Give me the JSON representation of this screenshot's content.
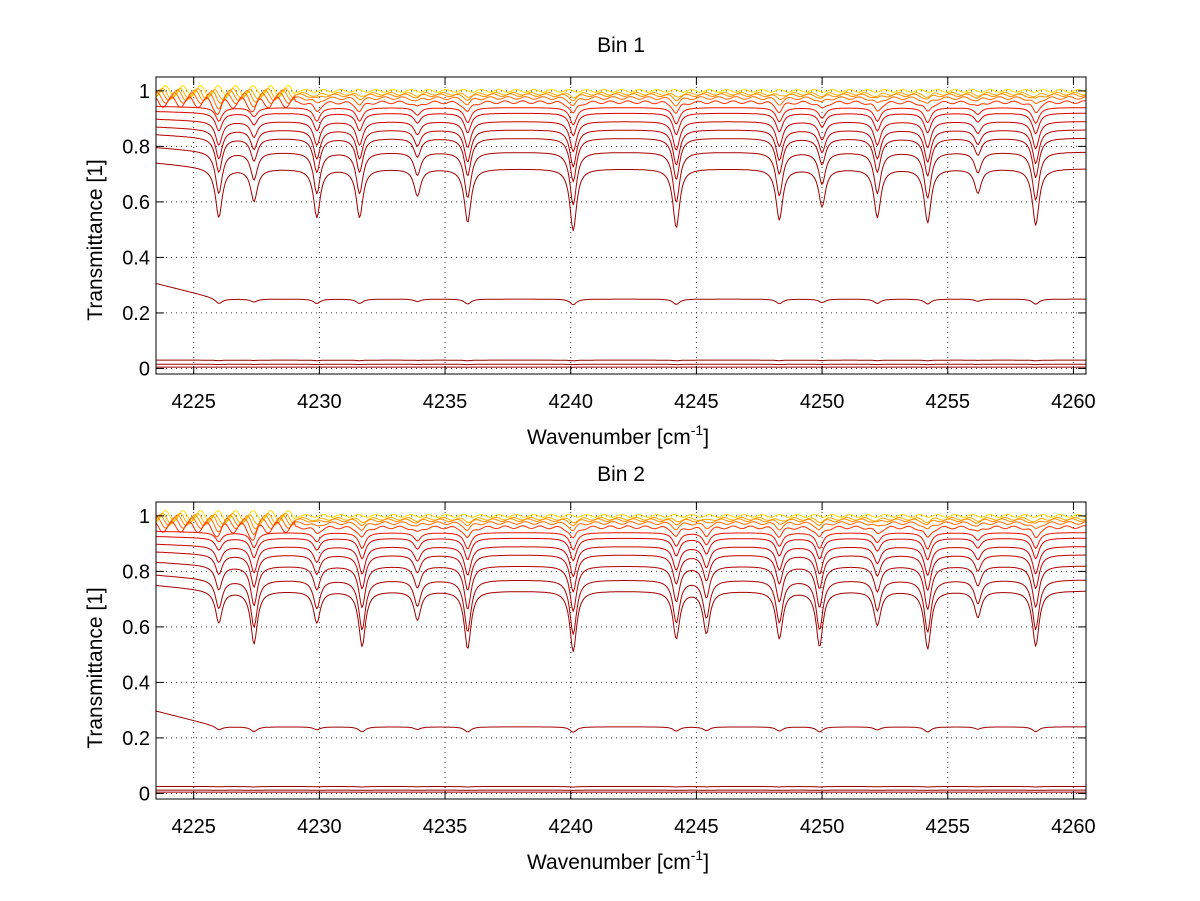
{
  "chart_data": [
    {
      "type": "line",
      "title": "Bin 1",
      "xlabel": "Wavenumber [cm-1]",
      "xlabel_main": "Wavenumber [cm",
      "xlabel_sup": "-1",
      "xlabel_end": "]",
      "ylabel": "Transmittance [1]",
      "xlim": [
        4223.5,
        4260.5
      ],
      "ylim": [
        -0.02,
        1.05
      ],
      "xticks": [
        4225,
        4230,
        4235,
        4240,
        4245,
        4250,
        4255,
        4260
      ],
      "yticks": [
        0,
        0.2,
        0.4,
        0.6,
        0.8,
        1
      ],
      "ytick_labels": [
        "0",
        "0.2",
        "0.4",
        "0.6",
        "0.8",
        "1"
      ],
      "grid": true,
      "absorption_lines_x": [
        4226.0,
        4227.4,
        4229.9,
        4231.6,
        4233.9,
        4235.9,
        4240.1,
        4244.2,
        4248.3,
        4250.0,
        4252.2,
        4254.2,
        4256.2,
        4258.5
      ],
      "absorption_line_strengths": [
        0.9,
        0.6,
        0.9,
        0.9,
        0.5,
        1.0,
        1.15,
        1.1,
        0.95,
        0.7,
        0.9,
        1.0,
        0.45,
        1.05
      ],
      "series_baselines": [
        1.0,
        0.99,
        0.985,
        0.975,
        0.96,
        0.94,
        0.92,
        0.89,
        0.86,
        0.83,
        0.78,
        0.72,
        0.25,
        0.03,
        0.015,
        0.005
      ],
      "series_colors": [
        "#ffdd00",
        "#ffb000",
        "#ff8c00",
        "#ff6a00",
        "#ff3000",
        "#ee1100",
        "#dd0000",
        "#cc0000",
        "#bb0000",
        "#b00000",
        "#a80000",
        "#a00000",
        "#a00000",
        "#990000",
        "#990000",
        "#990000"
      ]
    },
    {
      "type": "line",
      "title": "Bin 2",
      "xlabel": "Wavenumber [cm-1]",
      "xlabel_main": "Wavenumber [cm",
      "xlabel_sup": "-1",
      "xlabel_end": "]",
      "ylabel": "Transmittance [1]",
      "xlim": [
        4223.5,
        4260.5
      ],
      "ylim": [
        -0.02,
        1.05
      ],
      "xticks": [
        4225,
        4230,
        4235,
        4240,
        4245,
        4250,
        4255,
        4260
      ],
      "yticks": [
        0,
        0.2,
        0.4,
        0.6,
        0.8,
        1
      ],
      "ytick_labels": [
        "0",
        "0.2",
        "0.4",
        "0.6",
        "0.8",
        "1"
      ],
      "grid": true,
      "absorption_lines_x": [
        4226.0,
        4227.4,
        4229.9,
        4231.7,
        4233.9,
        4235.9,
        4240.1,
        4244.2,
        4245.4,
        4248.3,
        4249.9,
        4252.2,
        4254.2,
        4256.2,
        4258.5
      ],
      "absorption_line_strengths": [
        0.6,
        1.0,
        0.6,
        1.05,
        0.55,
        1.1,
        1.15,
        0.9,
        0.8,
        0.9,
        1.05,
        0.65,
        1.1,
        0.5,
        1.05
      ],
      "series_baselines": [
        1.0,
        0.99,
        0.985,
        0.975,
        0.96,
        0.94,
        0.92,
        0.89,
        0.86,
        0.82,
        0.77,
        0.73,
        0.24,
        0.025,
        0.012,
        0.005
      ],
      "series_colors": [
        "#ffdd00",
        "#ffb000",
        "#ff8c00",
        "#ff6a00",
        "#ff3000",
        "#ee1100",
        "#dd0000",
        "#cc0000",
        "#bb0000",
        "#b00000",
        "#a80000",
        "#a00000",
        "#a00000",
        "#990000",
        "#990000",
        "#990000"
      ]
    }
  ]
}
